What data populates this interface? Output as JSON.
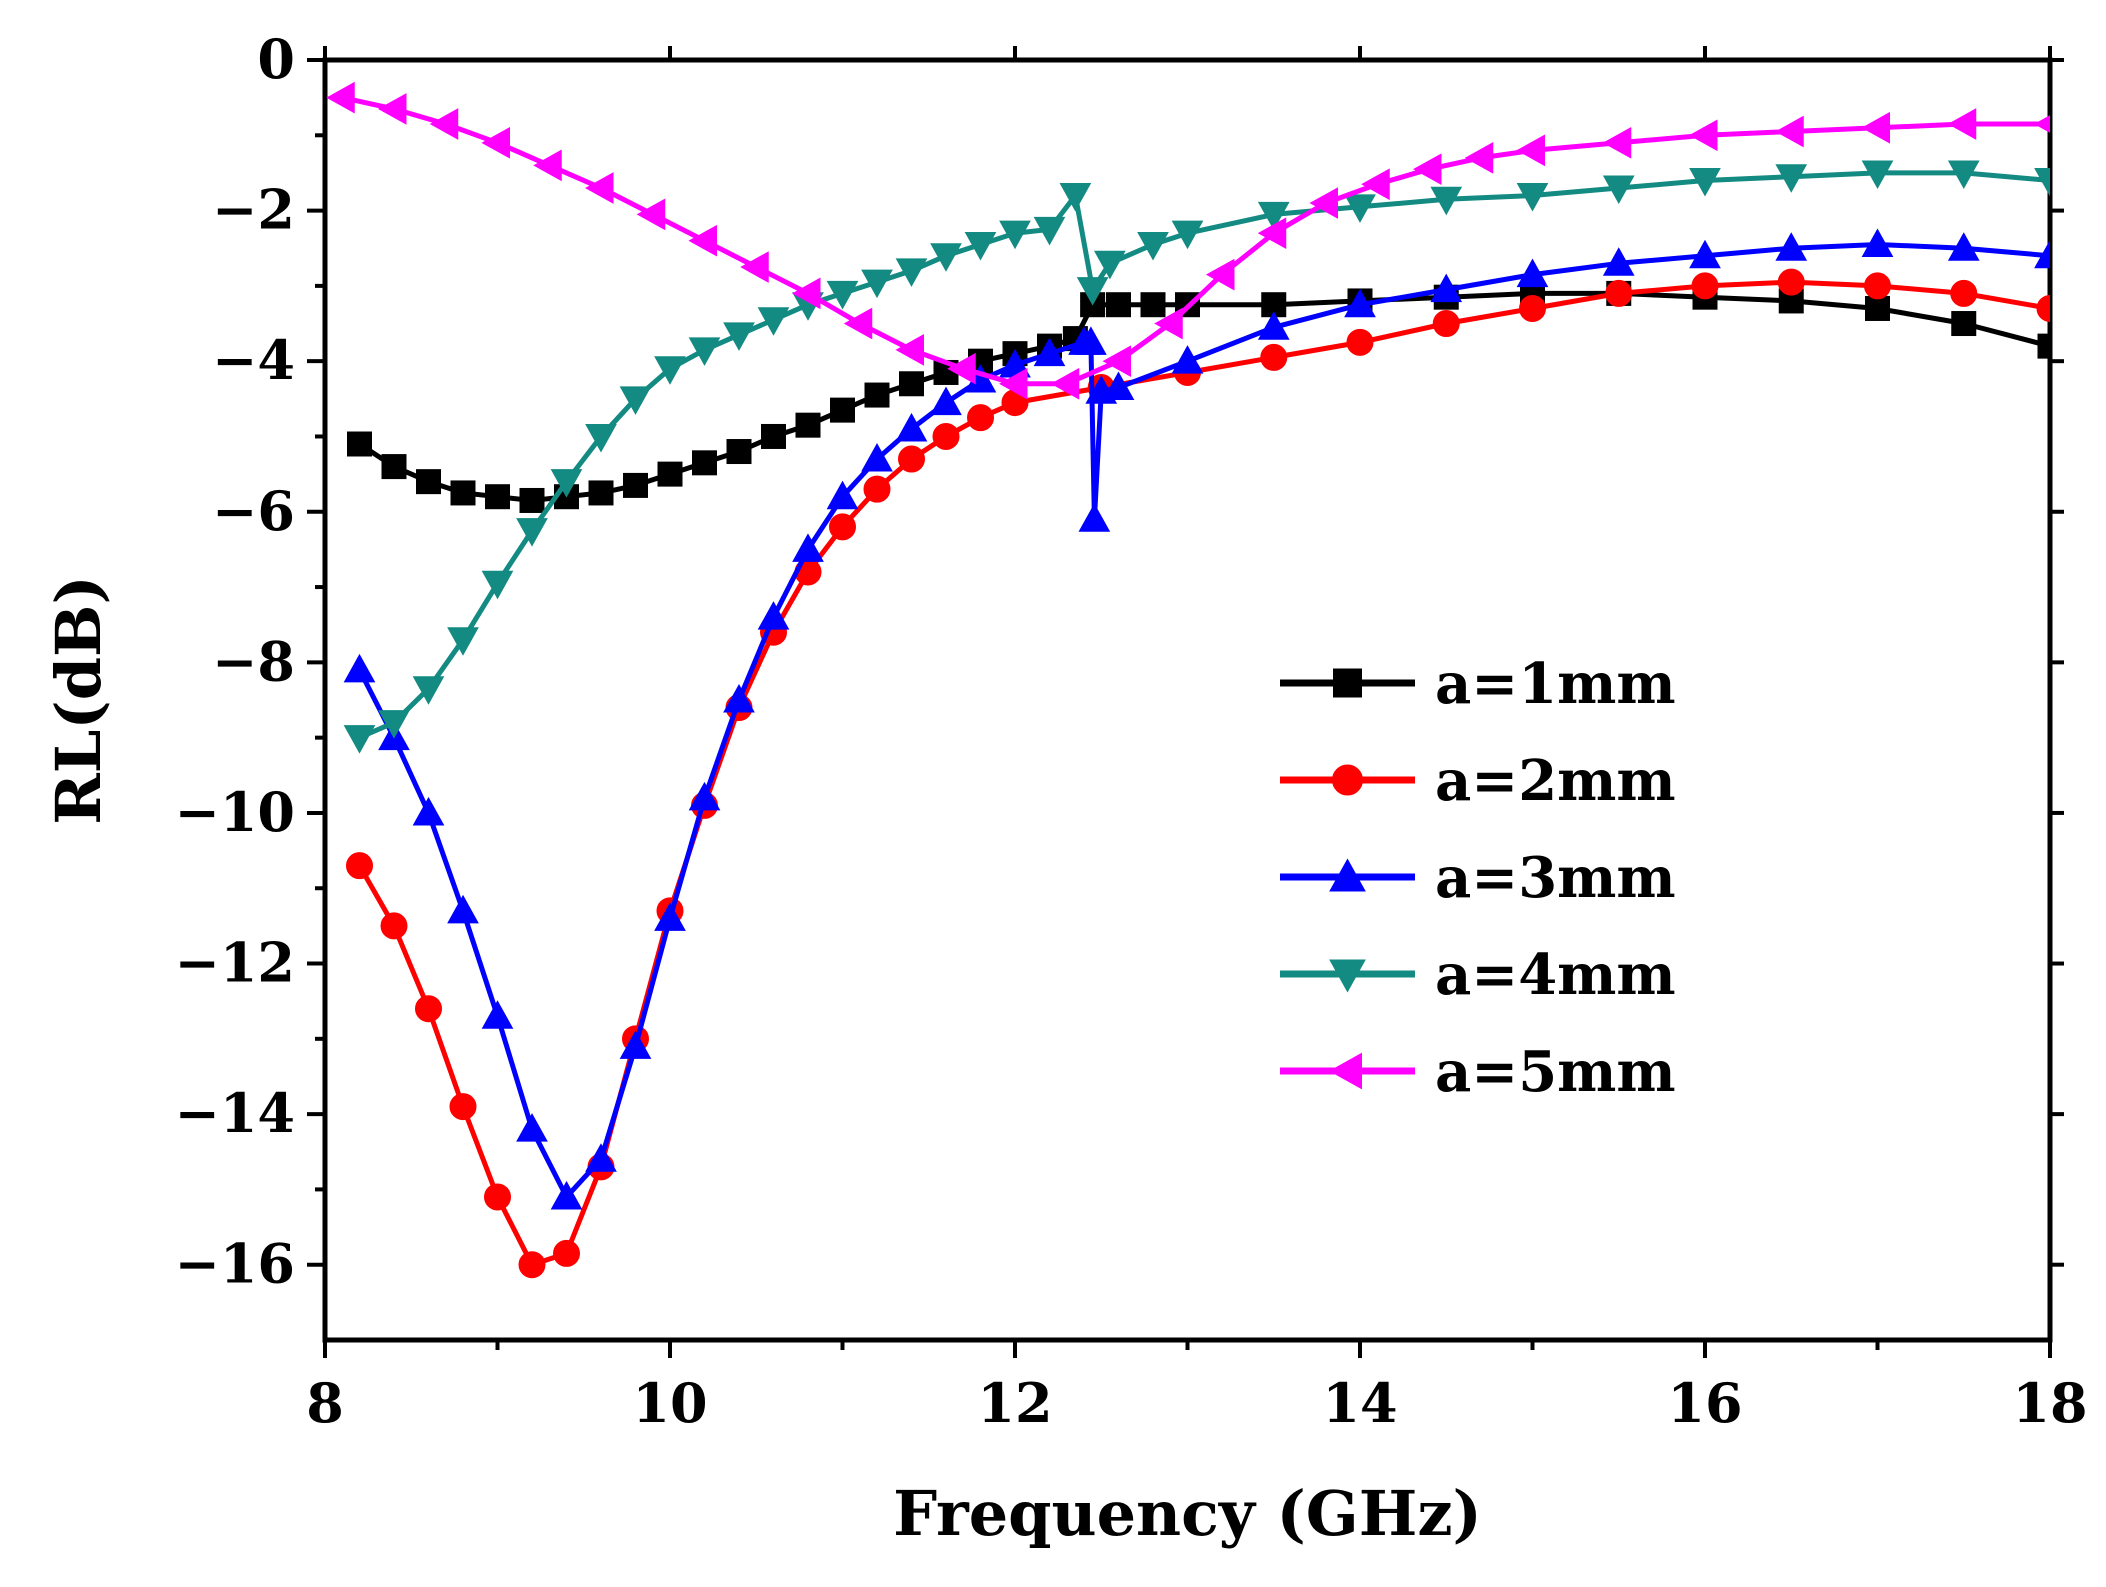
{
  "chart_data": {
    "type": "line",
    "title": "",
    "xlabel": "Frequency (GHz)",
    "ylabel": "RL(dB)",
    "xlim": [
      8,
      18
    ],
    "ylim": [
      -17,
      0
    ],
    "xticks": [
      8,
      10,
      12,
      14,
      16,
      18
    ],
    "xtick_labels": [
      "8",
      "10",
      "12",
      "14",
      "16",
      "18"
    ],
    "yticks": [
      0,
      -2,
      -4,
      -6,
      -8,
      -10,
      -12,
      -14,
      -16
    ],
    "ytick_labels": [
      "0",
      "−2",
      "−4",
      "−6",
      "−8",
      "−10",
      "−12",
      "−14",
      "−16"
    ],
    "grid": false,
    "legend_position": "right",
    "series": [
      {
        "name": "a=1mm",
        "color": "#000000",
        "marker": "square",
        "x": [
          8.2,
          8.4,
          8.6,
          8.8,
          9.0,
          9.2,
          9.4,
          9.6,
          9.8,
          10.0,
          10.2,
          10.4,
          10.6,
          10.8,
          11.0,
          11.2,
          11.4,
          11.6,
          11.8,
          12.0,
          12.2,
          12.35,
          12.45,
          12.6,
          12.8,
          13.0,
          13.5,
          14.0,
          14.5,
          15.0,
          15.5,
          16.0,
          16.5,
          17.0,
          17.5,
          18.0
        ],
        "y": [
          -5.1,
          -5.4,
          -5.6,
          -5.75,
          -5.8,
          -5.85,
          -5.8,
          -5.75,
          -5.65,
          -5.5,
          -5.35,
          -5.2,
          -5.0,
          -4.85,
          -4.65,
          -4.45,
          -4.3,
          -4.15,
          -4.0,
          -3.9,
          -3.8,
          -3.7,
          -3.25,
          -3.25,
          -3.25,
          -3.25,
          -3.25,
          -3.2,
          -3.15,
          -3.1,
          -3.1,
          -3.15,
          -3.2,
          -3.3,
          -3.5,
          -3.8
        ]
      },
      {
        "name": "a=2mm",
        "color": "#ff0000",
        "marker": "circle",
        "x": [
          8.2,
          8.4,
          8.6,
          8.8,
          9.0,
          9.2,
          9.4,
          9.6,
          9.8,
          10.0,
          10.2,
          10.4,
          10.6,
          10.8,
          11.0,
          11.2,
          11.4,
          11.6,
          11.8,
          12.0,
          12.5,
          13.0,
          13.5,
          14.0,
          14.5,
          15.0,
          15.5,
          16.0,
          16.5,
          17.0,
          17.5,
          18.0
        ],
        "y": [
          -10.7,
          -11.5,
          -12.6,
          -13.9,
          -15.1,
          -16.0,
          -15.85,
          -14.7,
          -13.0,
          -11.3,
          -9.9,
          -8.6,
          -7.6,
          -6.8,
          -6.2,
          -5.7,
          -5.3,
          -5.0,
          -4.75,
          -4.55,
          -4.35,
          -4.15,
          -3.95,
          -3.75,
          -3.5,
          -3.3,
          -3.1,
          -3.0,
          -2.95,
          -3.0,
          -3.1,
          -3.3
        ]
      },
      {
        "name": "a=3mm",
        "color": "#0000ff",
        "marker": "triangle-up",
        "x": [
          8.2,
          8.4,
          8.6,
          8.8,
          9.0,
          9.2,
          9.4,
          9.6,
          9.8,
          10.0,
          10.2,
          10.4,
          10.6,
          10.8,
          11.0,
          11.2,
          11.4,
          11.6,
          11.8,
          12.0,
          12.2,
          12.4,
          12.44,
          12.46,
          12.5,
          12.6,
          13.0,
          13.5,
          14.0,
          14.5,
          15.0,
          15.5,
          16.0,
          16.5,
          17.0,
          17.5,
          18.0
        ],
        "y": [
          -8.1,
          -9.0,
          -10.0,
          -11.3,
          -12.7,
          -14.2,
          -15.1,
          -14.6,
          -13.1,
          -11.4,
          -9.8,
          -8.5,
          -7.4,
          -6.5,
          -5.8,
          -5.3,
          -4.9,
          -4.55,
          -4.25,
          -4.05,
          -3.9,
          -3.75,
          -3.75,
          -6.1,
          -4.4,
          -4.35,
          -4.0,
          -3.55,
          -3.25,
          -3.05,
          -2.85,
          -2.7,
          -2.6,
          -2.5,
          -2.45,
          -2.5,
          -2.6
        ]
      },
      {
        "name": "a=4mm",
        "color": "#138a82",
        "marker": "triangle-down",
        "x": [
          8.2,
          8.4,
          8.6,
          8.8,
          9.0,
          9.2,
          9.4,
          9.6,
          9.8,
          10.0,
          10.2,
          10.4,
          10.6,
          10.8,
          11.0,
          11.2,
          11.4,
          11.6,
          11.8,
          12.0,
          12.2,
          12.35,
          12.45,
          12.55,
          12.8,
          13.0,
          13.5,
          14.0,
          14.5,
          15.0,
          15.5,
          16.0,
          16.5,
          17.0,
          17.5,
          18.0
        ],
        "y": [
          -9.0,
          -8.8,
          -8.35,
          -7.7,
          -6.95,
          -6.25,
          -5.6,
          -5.0,
          -4.5,
          -4.1,
          -3.85,
          -3.65,
          -3.45,
          -3.25,
          -3.1,
          -2.95,
          -2.8,
          -2.6,
          -2.45,
          -2.3,
          -2.25,
          -1.8,
          -3.05,
          -2.7,
          -2.45,
          -2.3,
          -2.05,
          -1.95,
          -1.85,
          -1.8,
          -1.7,
          -1.6,
          -1.55,
          -1.5,
          -1.5,
          -1.6
        ]
      },
      {
        "name": "a=5mm",
        "color": "#ff00ff",
        "marker": "triangle-left",
        "x": [
          8.1,
          8.4,
          8.7,
          9.0,
          9.3,
          9.6,
          9.9,
          10.2,
          10.5,
          10.8,
          11.1,
          11.4,
          11.7,
          12.0,
          12.3,
          12.6,
          12.9,
          13.2,
          13.5,
          13.8,
          14.1,
          14.4,
          14.7,
          15.0,
          15.5,
          16.0,
          16.5,
          17.0,
          17.5,
          18.0
        ],
        "y": [
          -0.5,
          -0.65,
          -0.85,
          -1.1,
          -1.4,
          -1.7,
          -2.05,
          -2.4,
          -2.75,
          -3.1,
          -3.5,
          -3.85,
          -4.1,
          -4.3,
          -4.3,
          -4.0,
          -3.5,
          -2.85,
          -2.3,
          -1.9,
          -1.65,
          -1.45,
          -1.3,
          -1.2,
          -1.1,
          -1.0,
          -0.95,
          -0.9,
          -0.85,
          -0.85
        ]
      }
    ]
  }
}
